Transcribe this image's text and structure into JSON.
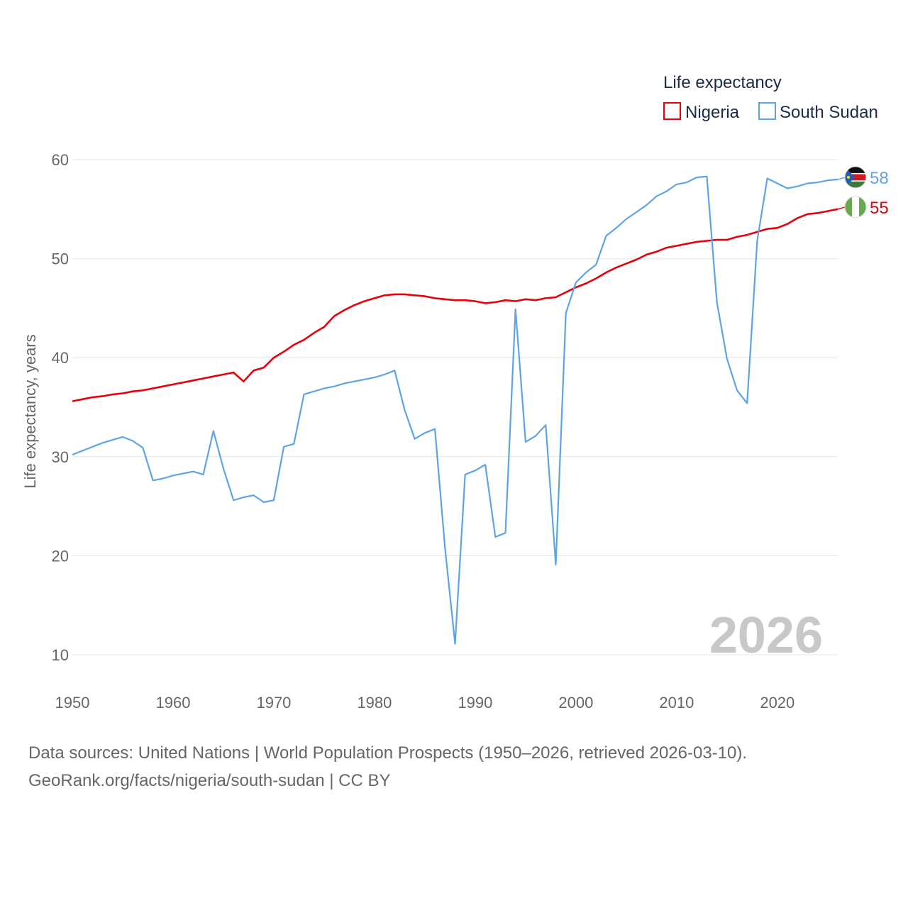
{
  "chart_data": {
    "type": "line",
    "legend_title": "Life expectancy",
    "ylabel": "Life expectancy, years",
    "xlim": [
      1950,
      2026
    ],
    "ylim": [
      10,
      60
    ],
    "yticks": [
      "10",
      "20",
      "30",
      "40",
      "50",
      "60"
    ],
    "xticks": [
      "1950",
      "1960",
      "1970",
      "1980",
      "1990",
      "2000",
      "2010",
      "2020"
    ],
    "year_label": "2026",
    "legend_position": "top-right",
    "grid": true,
    "series": [
      {
        "name": "Nigeria",
        "color": "#e8000b",
        "end_label": "55",
        "flag": "nigeria-flag-icon",
        "x": [
          1950,
          1951,
          1952,
          1953,
          1954,
          1955,
          1956,
          1957,
          1958,
          1959,
          1960,
          1961,
          1962,
          1963,
          1964,
          1965,
          1966,
          1967,
          1968,
          1969,
          1970,
          1971,
          1972,
          1973,
          1974,
          1975,
          1976,
          1977,
          1978,
          1979,
          1980,
          1981,
          1982,
          1983,
          1984,
          1985,
          1986,
          1987,
          1988,
          1989,
          1990,
          1991,
          1992,
          1993,
          1994,
          1995,
          1996,
          1997,
          1998,
          1999,
          2000,
          2001,
          2002,
          2003,
          2004,
          2005,
          2006,
          2007,
          2008,
          2009,
          2010,
          2011,
          2012,
          2013,
          2014,
          2015,
          2016,
          2017,
          2018,
          2019,
          2020,
          2021,
          2022,
          2023,
          2024,
          2025,
          2026
        ],
        "values": [
          35.6,
          35.8,
          36.0,
          36.1,
          36.3,
          36.4,
          36.6,
          36.7,
          36.9,
          37.1,
          37.3,
          37.5,
          37.7,
          37.9,
          38.1,
          38.3,
          38.5,
          37.6,
          38.7,
          39.0,
          40.0,
          40.6,
          41.3,
          41.8,
          42.5,
          43.1,
          44.2,
          44.8,
          45.3,
          45.7,
          46.0,
          46.3,
          46.4,
          46.4,
          46.3,
          46.2,
          46.0,
          45.9,
          45.8,
          45.8,
          45.7,
          45.5,
          45.6,
          45.8,
          45.7,
          45.9,
          45.8,
          46.0,
          46.1,
          46.6,
          47.1,
          47.5,
          48.0,
          48.6,
          49.1,
          49.5,
          49.9,
          50.4,
          50.7,
          51.1,
          51.3,
          51.5,
          51.7,
          51.8,
          51.9,
          51.9,
          52.2,
          52.4,
          52.7,
          53.0,
          53.1,
          53.5,
          54.1,
          54.5,
          54.6,
          54.8,
          55.0
        ]
      },
      {
        "name": "South Sudan",
        "color": "#5ea4e5",
        "end_label": "58",
        "flag": "south-sudan-flag-icon",
        "x": [
          1950,
          1951,
          1952,
          1953,
          1954,
          1955,
          1956,
          1957,
          1958,
          1959,
          1960,
          1961,
          1962,
          1963,
          1964,
          1965,
          1966,
          1967,
          1968,
          1969,
          1970,
          1971,
          1972,
          1973,
          1974,
          1975,
          1976,
          1977,
          1978,
          1979,
          1980,
          1981,
          1982,
          1983,
          1984,
          1985,
          1986,
          1987,
          1988,
          1989,
          1990,
          1991,
          1992,
          1993,
          1994,
          1995,
          1996,
          1997,
          1998,
          1999,
          2000,
          2001,
          2002,
          2003,
          2004,
          2005,
          2006,
          2007,
          2008,
          2009,
          2010,
          2011,
          2012,
          2013,
          2014,
          2015,
          2016,
          2017,
          2018,
          2019,
          2020,
          2021,
          2022,
          2023,
          2024,
          2025,
          2026
        ],
        "values": [
          30.2,
          30.6,
          31.0,
          31.4,
          31.7,
          32.0,
          31.6,
          30.9,
          27.6,
          27.8,
          28.1,
          28.3,
          28.5,
          28.2,
          32.6,
          28.8,
          25.6,
          25.9,
          26.1,
          25.4,
          25.6,
          31.0,
          31.3,
          36.3,
          36.6,
          36.9,
          37.1,
          37.4,
          37.6,
          37.8,
          38.0,
          38.3,
          38.7,
          34.7,
          31.8,
          32.4,
          32.8,
          20.8,
          11.1,
          28.2,
          28.6,
          29.2,
          21.9,
          22.3,
          44.9,
          31.5,
          32.1,
          33.2,
          19.1,
          44.5,
          47.6,
          48.6,
          49.4,
          52.3,
          53.1,
          54.0,
          54.7,
          55.4,
          56.3,
          56.8,
          57.5,
          57.7,
          58.2,
          58.3,
          45.6,
          39.9,
          36.7,
          35.4,
          51.8,
          58.1,
          57.6,
          57.1,
          57.3,
          57.6,
          57.7,
          57.9,
          58.0
        ]
      }
    ]
  },
  "source": {
    "line1": "Data sources: United Nations | World Population Prospects (1950–2026, retrieved 2026-03-10).",
    "line2": "GeoRank.org/facts/nigeria/south-sudan | CC BY"
  }
}
